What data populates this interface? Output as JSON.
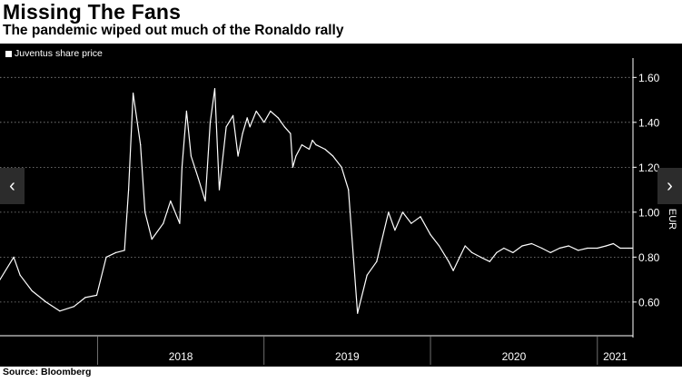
{
  "title": "Missing The Fans",
  "subtitle": "The pandemic wiped out much of the Ronaldo rally",
  "source": "Source: Bloomberg",
  "nav": {
    "prev_icon": "‹",
    "next_icon": "›"
  },
  "colors": {
    "background": "#000000",
    "line": "#ffffff",
    "grid": "#8a8a8a",
    "page": "#ffffff"
  },
  "chart_data": {
    "type": "line",
    "title": "Missing The Fans",
    "subtitle": "The pandemic wiped out much of the Ronaldo rally",
    "ylabel": "EUR",
    "ylim": [
      0.45,
      1.67
    ],
    "yticks": [
      0.6,
      0.8,
      1.0,
      1.2,
      1.4,
      1.6
    ],
    "ytick_labels": [
      "0.60",
      "0.80",
      "1.00",
      "1.20",
      "1.40",
      "1.60"
    ],
    "xlim": [
      "2017-06-01",
      "2021-03-20"
    ],
    "xtick_labels": [
      "2018",
      "2019",
      "2020",
      "2021"
    ],
    "grid": true,
    "legend": "top-left",
    "series": [
      {
        "name": "Juventus share price",
        "x": [
          "2017-06-01",
          "2017-07-01",
          "2017-07-15",
          "2017-08-10",
          "2017-09-10",
          "2017-10-10",
          "2017-11-10",
          "2017-12-05",
          "2017-12-30",
          "2018-01-20",
          "2018-02-10",
          "2018-03-01",
          "2018-03-10",
          "2018-03-20",
          "2018-04-05",
          "2018-04-15",
          "2018-04-30",
          "2018-05-25",
          "2018-06-10",
          "2018-06-30",
          "2018-07-05",
          "2018-07-15",
          "2018-07-25",
          "2018-08-10",
          "2018-08-25",
          "2018-09-05",
          "2018-09-15",
          "2018-09-25",
          "2018-10-10",
          "2018-10-25",
          "2018-11-05",
          "2018-11-15",
          "2018-11-25",
          "2018-12-01",
          "2018-12-15",
          "2019-01-01",
          "2019-01-15",
          "2019-02-01",
          "2019-02-15",
          "2019-02-28",
          "2019-03-05",
          "2019-03-12",
          "2019-03-25",
          "2019-04-10",
          "2019-04-17",
          "2019-04-25",
          "2019-05-15",
          "2019-06-01",
          "2019-06-20",
          "2019-07-05",
          "2019-07-25",
          "2019-08-15",
          "2019-09-05",
          "2019-10-01",
          "2019-10-15",
          "2019-11-01",
          "2019-11-20",
          "2019-12-10",
          "2020-01-01",
          "2020-01-20",
          "2020-02-10",
          "2020-02-20",
          "2020-03-05",
          "2020-03-17",
          "2020-04-01",
          "2020-04-20",
          "2020-05-10",
          "2020-05-25",
          "2020-06-10",
          "2020-06-30",
          "2020-07-20",
          "2020-08-10",
          "2020-09-01",
          "2020-09-20",
          "2020-10-10",
          "2020-10-30",
          "2020-11-20",
          "2020-12-10",
          "2021-01-01",
          "2021-01-20",
          "2021-02-05",
          "2021-02-20",
          "2021-03-10",
          "2021-03-20"
        ],
        "values": [
          0.7,
          0.8,
          0.72,
          0.65,
          0.6,
          0.56,
          0.58,
          0.62,
          0.63,
          0.8,
          0.82,
          0.83,
          1.1,
          1.53,
          1.3,
          1.0,
          0.88,
          0.95,
          1.05,
          0.95,
          1.2,
          1.45,
          1.25,
          1.15,
          1.05,
          1.4,
          1.55,
          1.1,
          1.38,
          1.43,
          1.25,
          1.35,
          1.42,
          1.38,
          1.45,
          1.4,
          1.45,
          1.42,
          1.38,
          1.35,
          1.2,
          1.25,
          1.3,
          1.28,
          1.32,
          1.3,
          1.28,
          1.25,
          1.2,
          1.1,
          0.55,
          0.72,
          0.78,
          1.0,
          0.92,
          1.0,
          0.95,
          0.98,
          0.9,
          0.85,
          0.78,
          0.74,
          0.8,
          0.85,
          0.82,
          0.8,
          0.78,
          0.82,
          0.84,
          0.82,
          0.85,
          0.86,
          0.84,
          0.82,
          0.84,
          0.85,
          0.83,
          0.84,
          0.84,
          0.85,
          0.86,
          0.84,
          0.84,
          0.84
        ]
      }
    ]
  }
}
